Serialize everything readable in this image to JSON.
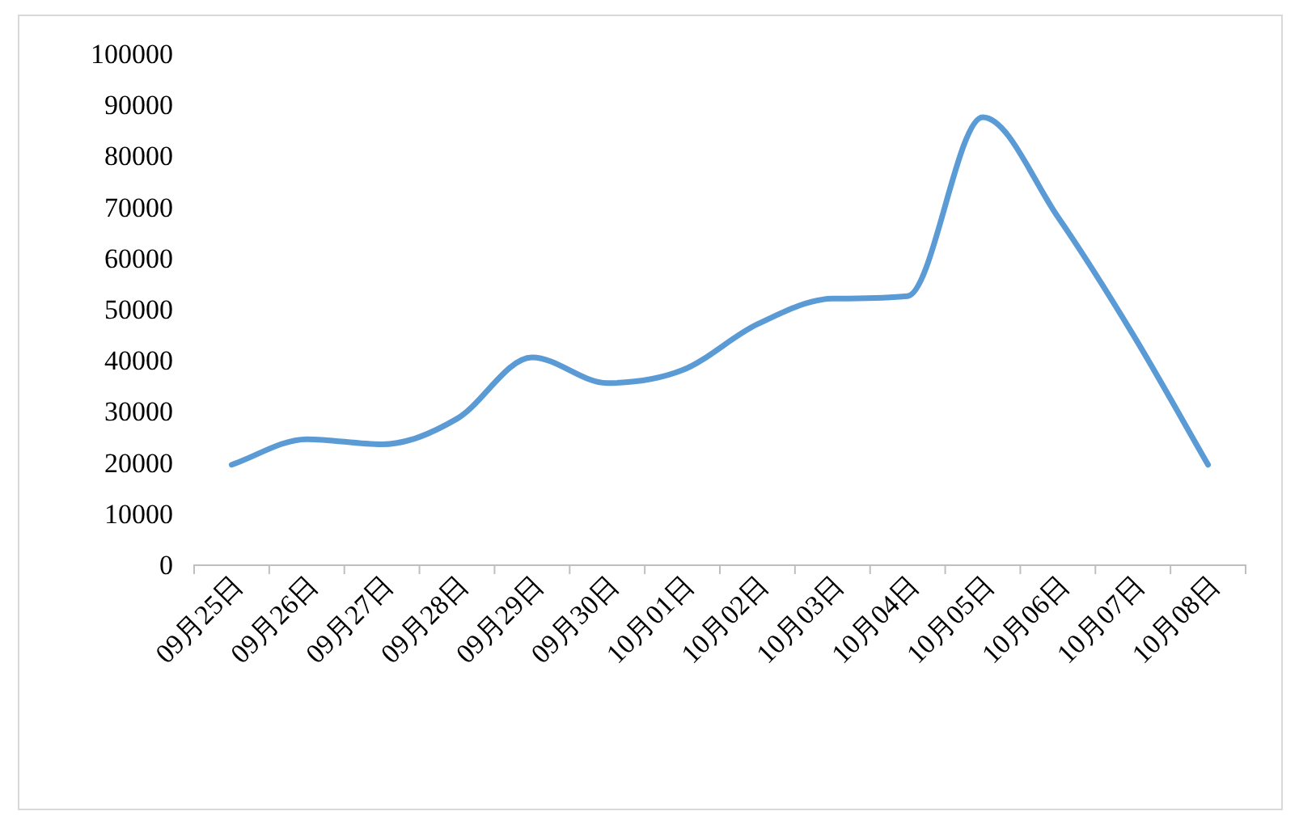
{
  "chart_data": {
    "type": "line",
    "categories": [
      "09月25日",
      "09月26日",
      "09月27日",
      "09月28日",
      "09月29日",
      "09月30日",
      "10月01日",
      "10月02日",
      "10月03日",
      "10月04日",
      "10月05日",
      "10月06日",
      "10月07日",
      "10月08日"
    ],
    "series": [
      {
        "color": "#5b9bd5",
        "values": [
          19500,
          24500,
          23500,
          28500,
          40500,
          35500,
          38000,
          47000,
          52000,
          52500,
          87500,
          68000,
          45000,
          19500
        ]
      }
    ],
    "ylim": [
      0,
      100000
    ],
    "yticks": [
      0,
      10000,
      20000,
      30000,
      40000,
      50000,
      60000,
      70000,
      80000,
      90000,
      100000
    ],
    "grid": false,
    "marker": "none",
    "line_style": "solid"
  }
}
